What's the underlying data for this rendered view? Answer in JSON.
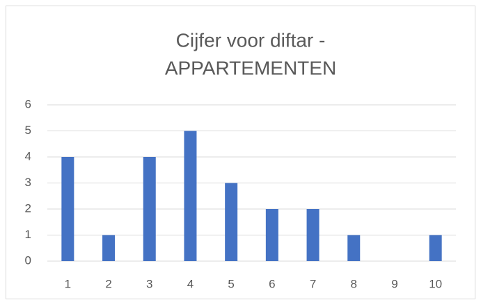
{
  "chart_data": {
    "type": "bar",
    "title": [
      "Cijfer voor diftar -",
      "APPARTEMENTEN"
    ],
    "categories": [
      "1",
      "2",
      "3",
      "4",
      "5",
      "6",
      "7",
      "8",
      "9",
      "10"
    ],
    "values": [
      4,
      1,
      4,
      5,
      3,
      2,
      2,
      1,
      0,
      1
    ],
    "color": "#4472c4",
    "ylim": [
      0,
      6
    ],
    "yticks": [
      0,
      1,
      2,
      3,
      4,
      5,
      6
    ],
    "grid": true
  }
}
